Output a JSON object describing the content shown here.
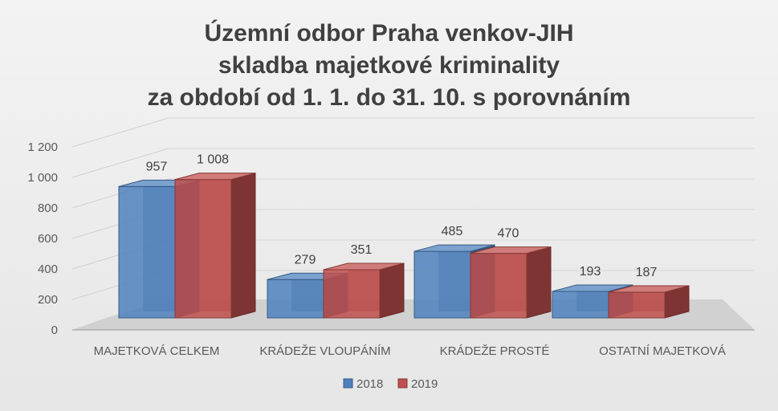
{
  "chart_data": {
    "type": "bar",
    "title_lines": [
      "Územní odbor Praha venkov-JIH",
      "skladba majetkové kriminality",
      "za období od 1. 1. do 31. 10. s porovnáním"
    ],
    "categories": [
      "MAJETKOVÁ CELKEM",
      "KRÁDEŽE VLOUPÁNÍM",
      "KRÁDEŽE PROSTÉ",
      "OSTATNÍ MAJETKOVÁ"
    ],
    "series": [
      {
        "name": "2018",
        "values": [
          957,
          279,
          485,
          193
        ],
        "value_labels": [
          "957",
          "279",
          "485",
          "193"
        ],
        "color": "#4f81bd"
      },
      {
        "name": "2019",
        "values": [
          1008,
          351,
          470,
          187
        ],
        "value_labels": [
          "1 008",
          "351",
          "470",
          "187"
        ],
        "color": "#c0504d"
      }
    ],
    "ylim": [
      0,
      1200
    ],
    "yticks": [
      0,
      200,
      400,
      600,
      800,
      1000,
      1200
    ],
    "ytick_labels": [
      "0",
      "200",
      "400",
      "600",
      "800",
      "1 000",
      "1 200"
    ],
    "grid": true,
    "legend_position": "bottom",
    "style": "3d-clustered"
  }
}
